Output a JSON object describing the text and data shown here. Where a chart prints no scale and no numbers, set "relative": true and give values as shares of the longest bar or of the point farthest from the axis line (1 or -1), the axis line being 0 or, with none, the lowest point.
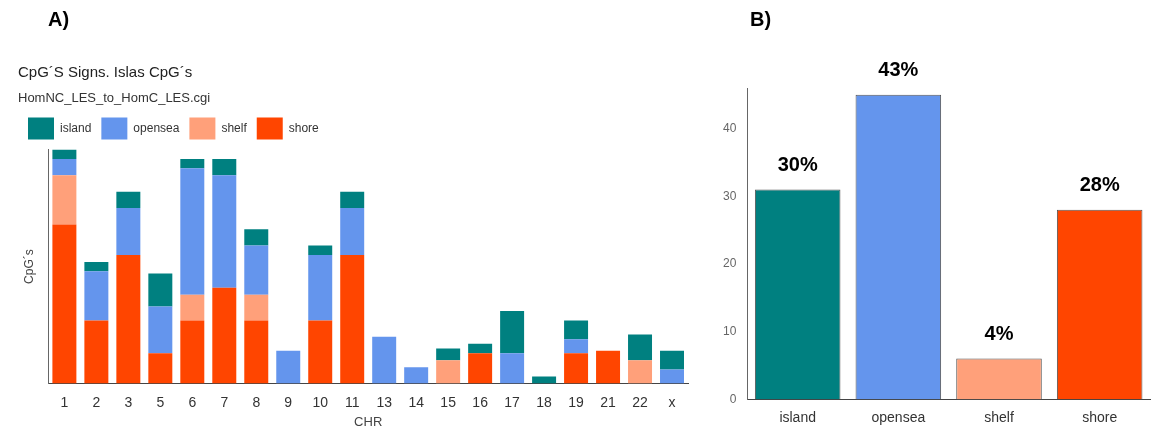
{
  "chart_data": [
    {
      "type": "bar",
      "title": "CpG´S Signs. Islas CpG´s",
      "annotations": [
        "A)"
      ],
      "xlabel": "CHR",
      "ylabel": "CpG´s",
      "legend_title": "HomNC_LES_to_HomC_LES.cgi",
      "legend": "top",
      "stacked": true,
      "relative": true,
      "grid": false,
      "categories": [
        "1",
        "2",
        "3",
        "5",
        "6",
        "7",
        "8",
        "9",
        "10",
        "11",
        "13",
        "14",
        "15",
        "16",
        "17",
        "18",
        "19",
        "21",
        "22",
        "x"
      ],
      "series": [
        {
          "name": "shore",
          "color": "#ff4500",
          "values": [
            0.68,
            0.27,
            0.55,
            0.13,
            0.27,
            0.41,
            0.27,
            0,
            0.27,
            0.55,
            0,
            0,
            0,
            0.13,
            0,
            0,
            0.13,
            0.14,
            0,
            0
          ]
        },
        {
          "name": "shelf",
          "color": "#ffa07a",
          "values": [
            0.21,
            0,
            0,
            0,
            0.11,
            0,
            0.11,
            0,
            0,
            0,
            0,
            0,
            0.1,
            0,
            0,
            0,
            0,
            0,
            0.1,
            0
          ]
        },
        {
          "name": "opensea",
          "color": "#6495ed",
          "values": [
            0.07,
            0.21,
            0.2,
            0.2,
            0.54,
            0.48,
            0.21,
            0.14,
            0.28,
            0.2,
            0.2,
            0.07,
            0,
            0,
            0.13,
            0,
            0.06,
            0,
            0,
            0.06
          ]
        },
        {
          "name": "island",
          "color": "#008080",
          "values": [
            0.04,
            0.04,
            0.07,
            0.14,
            0.04,
            0.07,
            0.07,
            0,
            0.04,
            0.07,
            0,
            0,
            0.05,
            0.04,
            0.18,
            0.03,
            0.08,
            0,
            0.11,
            0.08
          ]
        }
      ]
    },
    {
      "type": "bar",
      "grid": false,
      "legend": false,
      "annotations": [
        "B)",
        {
          "text": "30%",
          "x": "island",
          "y": 31
        },
        {
          "text": "43%",
          "x": "opensea",
          "y": 45
        },
        {
          "text": "4%",
          "x": "shelf",
          "y": 6
        },
        {
          "text": "28%",
          "x": "shore",
          "y": 28
        }
      ],
      "categories": [
        "island",
        "opensea",
        "shelf",
        "shore"
      ],
      "values": [
        31,
        45,
        6,
        28
      ],
      "colors": [
        "#008080",
        "#6495ed",
        "#ffa07a",
        "#ff4500"
      ],
      "ylim": [
        0,
        46
      ],
      "yticks": [
        0,
        10,
        20,
        30,
        40
      ]
    }
  ]
}
